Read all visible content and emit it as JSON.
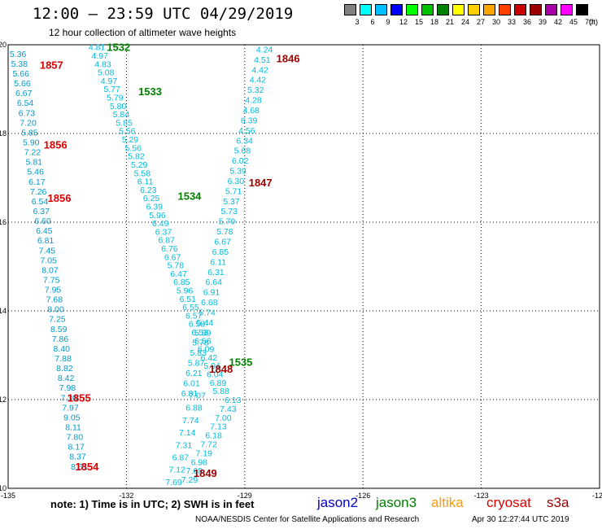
{
  "header": {
    "title": "12:00 – 23:59 UTC 04/29/2019",
    "subtitle": "12 hour collection of altimeter wave heights"
  },
  "legend": {
    "labels": [
      "3",
      "6",
      "9",
      "12",
      "15",
      "18",
      "21",
      "24",
      "27",
      "30",
      "33",
      "36",
      "39",
      "42",
      "45",
      "70"
    ],
    "unit": "(ft)",
    "colors": [
      "#808080",
      "#00ffff",
      "#00bfff",
      "#0000ff",
      "#00ff00",
      "#00c000",
      "#008000",
      "#ffff00",
      "#ffd000",
      "#ffa500",
      "#ff4000",
      "#cc0000",
      "#990000",
      "#aa00aa",
      "#ff00ff",
      "#000000"
    ]
  },
  "footer": {
    "note": "note: 1) Time is in UTC; 2) SWH is in feet",
    "satellites": [
      {
        "name": "jason2",
        "color": "#0000cc"
      },
      {
        "name": "jason3",
        "color": "#008000"
      },
      {
        "name": "altika",
        "color": "#ff9900"
      },
      {
        "name": "cryosat",
        "color": "#dd0000"
      },
      {
        "name": "s3a",
        "color": "#990000"
      }
    ],
    "credit": "NOAA/NESDIS Center for Satellite Applications and Research",
    "date": "Apr 30 12:27:44 UTC 2019"
  },
  "chart_data": {
    "type": "map",
    "lon_range": [
      -135,
      -120
    ],
    "lat_range": [
      10,
      20
    ],
    "x_ticks": [
      "-135",
      "-132",
      "-129",
      "-126",
      "-123",
      "-120"
    ],
    "y_ticks": [
      "20",
      "18",
      "16",
      "14",
      "12",
      "10"
    ],
    "grid": true,
    "time_labels": [
      {
        "text": "1532",
        "lon": -132.2,
        "lat": 19.95,
        "color": "#008000"
      },
      {
        "text": "1533",
        "lon": -131.4,
        "lat": 18.95,
        "color": "#008000"
      },
      {
        "text": "1534",
        "lon": -130.4,
        "lat": 16.6,
        "color": "#008000"
      },
      {
        "text": "1535",
        "lon": -129.1,
        "lat": 12.85,
        "color": "#008000"
      },
      {
        "text": "1857",
        "lon": -133.9,
        "lat": 19.55,
        "color": "#dd0000"
      },
      {
        "text": "1856",
        "lon": -133.8,
        "lat": 17.75,
        "color": "#dd0000"
      },
      {
        "text": "1856",
        "lon": -133.7,
        "lat": 16.55,
        "color": "#dd0000"
      },
      {
        "text": "1855",
        "lon": -133.2,
        "lat": 12.05,
        "color": "#dd0000"
      },
      {
        "text": "1854",
        "lon": -133.0,
        "lat": 10.5,
        "color": "#dd0000"
      },
      {
        "text": "1846",
        "lon": -127.9,
        "lat": 19.7,
        "color": "#990000"
      },
      {
        "text": "1847",
        "lon": -128.6,
        "lat": 16.9,
        "color": "#990000"
      },
      {
        "text": "1848",
        "lon": -129.6,
        "lat": 12.7,
        "color": "#990000"
      },
      {
        "text": "1849",
        "lon": -130.0,
        "lat": 10.35,
        "color": "#990000"
      }
    ],
    "tracks": [
      {
        "name": "cryosat track",
        "color": "#0099cc",
        "lon_start": -134.75,
        "lon_end": -133.2,
        "lat_start": 19.8,
        "lat_end": 10.5,
        "values": [
          "5.36",
          "5.38",
          "5.66",
          "5.66",
          "6.67",
          "6.54",
          "6.73",
          "7.20",
          "5.85",
          "5.90",
          "7.22",
          "5.81",
          "5.46",
          "6.17",
          "7.26",
          "6.54",
          "6.37",
          "6.60",
          "6.45",
          "6.81",
          "7.45",
          "7.05",
          "8.07",
          "7.75",
          "7.95",
          "7.68",
          "8.00",
          "7.25",
          "8.59",
          "7.86",
          "8.40",
          "7.88",
          "8.82",
          "8.42",
          "7.98",
          "7.30",
          "7.97",
          "9.05",
          "8.11",
          "7.80",
          "8.17",
          "8.37",
          "8.51"
        ]
      },
      {
        "name": "jason3 track",
        "color": "#00bbdd",
        "lon_start": -132.75,
        "lon_end": -129.6,
        "lat_start": 19.95,
        "lat_end": 12.2,
        "values": [
          "4.81",
          "4.97",
          "4.83",
          "5.08",
          "4.97",
          "5.77",
          "5.79",
          "5.80",
          "5.84",
          "5.85",
          "5.56",
          "5.29",
          "5.56",
          "5.82",
          "5.29",
          "5.58",
          "6.11",
          "6.23",
          "6.25",
          "6.39",
          "5.96",
          "6.49",
          "6.37",
          "6.87",
          "6.76",
          "6.67",
          "5.78",
          "6.47",
          "6.85",
          "5.96",
          "6.51",
          "6.55",
          "6.57",
          "6.58",
          "6.53",
          "6.56",
          "6.09",
          "6.42",
          "5.94",
          "6.04",
          "6.89",
          "5.88"
        ]
      },
      {
        "name": "s3a descending",
        "color": "#00bbdd",
        "lon_start": -128.5,
        "lon_end": -130.4,
        "lat_start": 19.9,
        "lat_end": 12.15,
        "values": [
          "4.24",
          "4.51",
          "4.42",
          "4.42",
          "5.32",
          "4.28",
          "4.68",
          "6.39",
          "4.56",
          "6.34",
          "5.68",
          "6.02",
          "5.39",
          "6.30",
          "5.71",
          "5.37",
          "5.73",
          "5.70",
          "5.78",
          "6.67",
          "6.85",
          "6.11",
          "6.31",
          "6.64",
          "6.91",
          "6.68",
          "5.74",
          "5.44",
          "5.89",
          "5.78",
          "5.83",
          "5.87",
          "6.21",
          "6.01",
          "6.81"
        ]
      },
      {
        "name": "s3a ascending",
        "color": "#00bbdd",
        "lon_start": -129.3,
        "lon_end": -130.4,
        "lat_start": 12.0,
        "lat_end": 10.2,
        "values": [
          "6.13",
          "7.43",
          "7.00",
          "7.13",
          "6.18",
          "7.72",
          "7.19",
          "6.98",
          "7.68",
          "7.29"
        ]
      },
      {
        "name": "jason3 lower",
        "color": "#00bbdd",
        "lon_start": -130.2,
        "lon_end": -130.8,
        "lat_start": 12.1,
        "lat_end": 10.15,
        "values": [
          "7.07",
          "6.88",
          "7.74",
          "7.14",
          "7.31",
          "6.87",
          "7.12",
          "7.69"
        ]
      }
    ]
  }
}
